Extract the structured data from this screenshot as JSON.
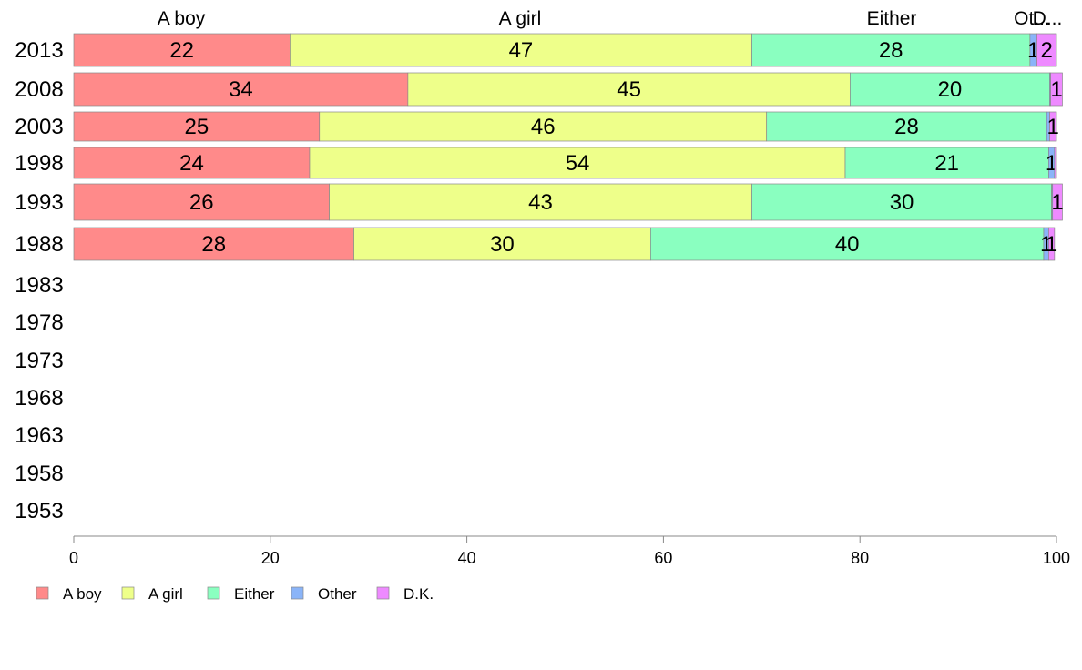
{
  "chart_data": {
    "type": "bar",
    "orientation": "horizontal",
    "stacked": true,
    "xlim": [
      0,
      100
    ],
    "x_ticks": [
      "0",
      "20",
      "40",
      "60",
      "80",
      "100"
    ],
    "categories": [
      "2013",
      "2008",
      "2003",
      "1998",
      "1993",
      "1988",
      "1983",
      "1978",
      "1973",
      "1968",
      "1963",
      "1958",
      "1953"
    ],
    "header_labels": [
      "A boy",
      "A girl",
      "Either",
      "Ot...",
      "D..."
    ],
    "legend_position": "bottom-left",
    "grid": false,
    "series": [
      {
        "name": "A boy",
        "color": "#FF8A8A",
        "values": [
          22,
          34,
          25,
          24,
          26,
          28.5,
          null,
          null,
          null,
          null,
          null,
          null,
          null
        ],
        "labels": [
          "22",
          "34",
          "25",
          "24",
          "26",
          "28",
          "",
          "",
          "",
          "",
          "",
          "",
          ""
        ]
      },
      {
        "name": "A girl",
        "color": "#EEFF8A",
        "values": [
          47,
          45,
          45.5,
          54.5,
          43,
          30.2,
          null,
          null,
          null,
          null,
          null,
          null,
          null
        ],
        "labels": [
          "47",
          "45",
          "46",
          "54",
          "43",
          "30",
          "",
          "",
          "",
          "",
          "",
          "",
          ""
        ]
      },
      {
        "name": "Either",
        "color": "#8AFFC0",
        "values": [
          28.3,
          20.3,
          28.5,
          20.7,
          30.5,
          40,
          null,
          null,
          null,
          null,
          null,
          null,
          null
        ],
        "labels": [
          "28",
          "20",
          "28",
          "21",
          "30",
          "40",
          "",
          "",
          "",
          "",
          "",
          "",
          ""
        ]
      },
      {
        "name": "Other",
        "color": "#8AB4F8",
        "values": [
          0.7,
          0.1,
          0.3,
          0.6,
          0.1,
          0.5,
          null,
          null,
          null,
          null,
          null,
          null,
          null
        ],
        "labels": [
          "1",
          "",
          "",
          "1",
          "",
          "1",
          "",
          "",
          "",
          "",
          "",
          "",
          ""
        ]
      },
      {
        "name": "D.K.",
        "color": "#EE8AFF",
        "values": [
          2,
          1.2,
          0.7,
          0.2,
          1,
          0.6,
          null,
          null,
          null,
          null,
          null,
          null,
          null
        ],
        "labels": [
          "2",
          "1",
          "1",
          "",
          "1",
          "1",
          "",
          "",
          "",
          "",
          "",
          "",
          ""
        ]
      }
    ]
  }
}
